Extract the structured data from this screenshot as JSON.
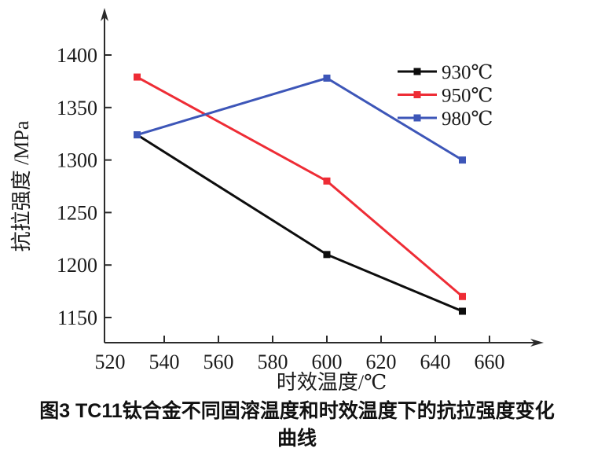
{
  "caption": {
    "line1": "图3  TC11钛合金不同固溶温度和时效温度下的抗拉强度变化",
    "line2": "曲线"
  },
  "chart_data": {
    "type": "line",
    "x": [
      530,
      600,
      650
    ],
    "series": [
      {
        "name": "930℃",
        "color": "#0d0d0d",
        "values": [
          1324,
          1210,
          1156
        ]
      },
      {
        "name": "950℃",
        "color": "#ee2c35",
        "values": [
          1379,
          1280,
          1170
        ]
      },
      {
        "name": "980℃",
        "color": "#3d56b8",
        "values": [
          1324,
          1378,
          1300
        ]
      }
    ],
    "xlabel": "时效温度/℃",
    "ylabel": "抗拉强度 /MPa",
    "xticks": [
      520,
      540,
      560,
      580,
      600,
      620,
      640,
      660
    ],
    "yticks": [
      1150,
      1200,
      1250,
      1300,
      1350,
      1400
    ],
    "xlim": [
      520,
      675
    ],
    "ylim": [
      1125,
      1445
    ],
    "marker": "square",
    "grid": false,
    "legend_position": "upper right",
    "axis_color": "#2b2b2b"
  }
}
